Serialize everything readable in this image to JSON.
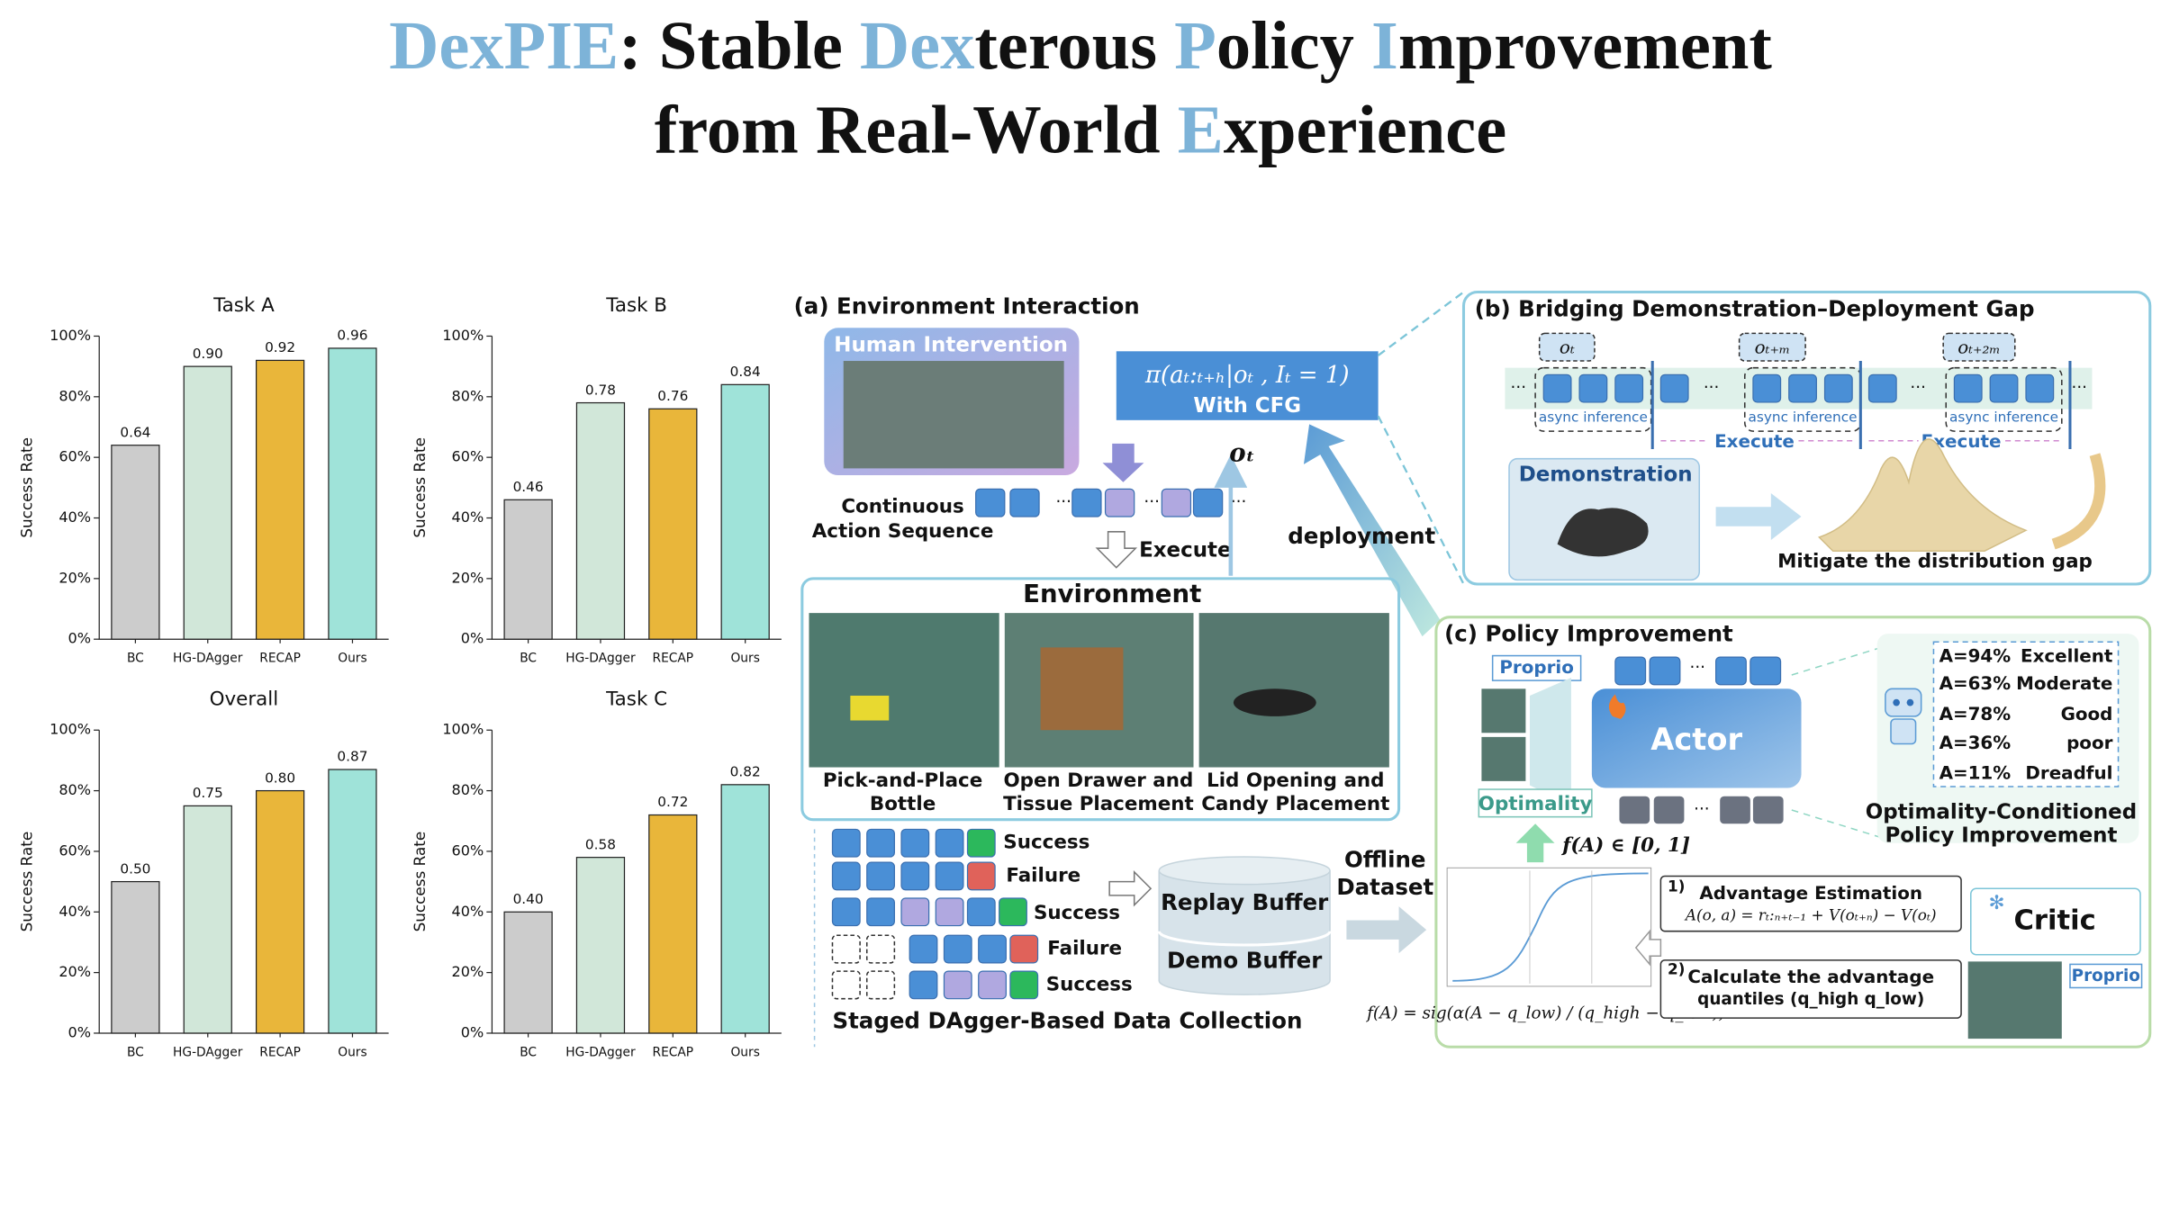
{
  "title": {
    "highlight_color": "#7db3d8",
    "lines": [
      [
        {
          "text": "DexPIE",
          "highlight": true
        },
        {
          "text": ": Stable ",
          "highlight": false
        },
        {
          "text": "Dex",
          "highlight": true
        },
        {
          "text": "terous ",
          "highlight": false
        },
        {
          "text": "P",
          "highlight": true
        },
        {
          "text": "olicy ",
          "highlight": false
        },
        {
          "text": "I",
          "highlight": true
        },
        {
          "text": "mprovement",
          "highlight": false
        }
      ],
      [
        {
          "text": "from Real-World ",
          "highlight": false
        },
        {
          "text": "E",
          "highlight": true
        },
        {
          "text": "xperience",
          "highlight": false
        }
      ]
    ]
  },
  "chart_data": [
    {
      "type": "bar",
      "title": "Task A",
      "y_label": "Success Rate",
      "categories": [
        "BC",
        "HG-DAgger",
        "RECAP",
        "Ours"
      ],
      "values": [
        0.64,
        0.9,
        0.92,
        0.96
      ],
      "value_labels": [
        "0.64",
        "0.90",
        "0.92",
        "0.96"
      ],
      "colors": [
        "#cccccc",
        "#d1e7d9",
        "#e9b63a",
        "#9fe3d9"
      ],
      "ylim": [
        0,
        1
      ],
      "yticks": [
        {
          "value": 0,
          "label": "0%"
        },
        {
          "value": 0.2,
          "label": "20%"
        },
        {
          "value": 0.4,
          "label": "40%"
        },
        {
          "value": 0.6,
          "label": "60%"
        },
        {
          "value": 0.8,
          "label": "80%"
        },
        {
          "value": 1,
          "label": "100%"
        }
      ]
    },
    {
      "type": "bar",
      "title": "Task B",
      "y_label": "Success Rate",
      "categories": [
        "BC",
        "HG-DAgger",
        "RECAP",
        "Ours"
      ],
      "values": [
        0.46,
        0.78,
        0.76,
        0.84
      ],
      "value_labels": [
        "0.46",
        "0.78",
        "0.76",
        "0.84"
      ],
      "colors": [
        "#cccccc",
        "#d1e7d9",
        "#e9b63a",
        "#9fe3d9"
      ],
      "ylim": [
        0,
        1
      ],
      "yticks": [
        {
          "value": 0,
          "label": "0%"
        },
        {
          "value": 0.2,
          "label": "20%"
        },
        {
          "value": 0.4,
          "label": "40%"
        },
        {
          "value": 0.6,
          "label": "60%"
        },
        {
          "value": 0.8,
          "label": "80%"
        },
        {
          "value": 1,
          "label": "100%"
        }
      ]
    },
    {
      "type": "bar",
      "title": "Overall",
      "y_label": "Success Rate",
      "categories": [
        "BC",
        "HG-DAgger",
        "RECAP",
        "Ours"
      ],
      "values": [
        0.5,
        0.75,
        0.8,
        0.87
      ],
      "value_labels": [
        "0.50",
        "0.75",
        "0.80",
        "0.87"
      ],
      "colors": [
        "#cccccc",
        "#d1e7d9",
        "#e9b63a",
        "#9fe3d9"
      ],
      "ylim": [
        0,
        1
      ],
      "yticks": [
        {
          "value": 0,
          "label": "0%"
        },
        {
          "value": 0.2,
          "label": "20%"
        },
        {
          "value": 0.4,
          "label": "40%"
        },
        {
          "value": 0.6,
          "label": "60%"
        },
        {
          "value": 0.8,
          "label": "80%"
        },
        {
          "value": 1,
          "label": "100%"
        }
      ]
    },
    {
      "type": "bar",
      "title": "Task C",
      "y_label": "Success Rate",
      "categories": [
        "BC",
        "HG-DAgger",
        "RECAP",
        "Ours"
      ],
      "values": [
        0.4,
        0.58,
        0.72,
        0.82
      ],
      "value_labels": [
        "0.40",
        "0.58",
        "0.72",
        "0.82"
      ],
      "colors": [
        "#cccccc",
        "#d1e7d9",
        "#e9b63a",
        "#9fe3d9"
      ],
      "ylim": [
        0,
        1
      ],
      "yticks": [
        {
          "value": 0,
          "label": "0%"
        },
        {
          "value": 0.2,
          "label": "20%"
        },
        {
          "value": 0.4,
          "label": "40%"
        },
        {
          "value": 0.6,
          "label": "60%"
        },
        {
          "value": 0.8,
          "label": "80%"
        },
        {
          "value": 1,
          "label": "100%"
        }
      ]
    }
  ],
  "panel_a": {
    "label": "(a) Environment Interaction",
    "intervention": "Human Intervention",
    "policy": "π(aₜ:ₜ₊ₕ|oₜ , Iₜ = 1)",
    "policy_note": "With CFG",
    "observation": "oₜ",
    "action_sequence": [
      "Continuous",
      "Action Sequence"
    ],
    "execute": "Execute",
    "deployment": "deployment",
    "environment": "Environment",
    "tasks": [
      [
        "Pick-and-Place",
        "Bottle"
      ],
      [
        "Open Drawer and",
        "Tissue Placement"
      ],
      [
        "Lid Opening and",
        "Candy Placement"
      ]
    ],
    "outcomes": [
      "Success",
      "Failure",
      "Success",
      "Failure",
      "Success"
    ],
    "collection": "Staged DAgger-Based Data Collection",
    "buffers": [
      "Replay Buffer",
      "Demo Buffer"
    ],
    "dataset": [
      "Offline",
      "Dataset"
    ]
  },
  "panel_b": {
    "label": "(b) Bridging Demonstration–Deployment Gap",
    "observations": [
      "oₜ",
      "oₜ₊ₘ",
      "oₜ₊₂ₘ"
    ],
    "inference": [
      "async inference",
      "async inference",
      "async inference"
    ],
    "execute": [
      "Execute",
      "Execute"
    ],
    "demonstration": "Demonstration",
    "caption": "Mitigate the distribution gap"
  },
  "panel_c": {
    "label": "(c) Policy Improvement",
    "proprio": [
      "Proprio",
      "Proprio"
    ],
    "actor": "Actor",
    "optimality": "Optimality",
    "range": "f(A) ∈ [0, 1]",
    "levels": [
      [
        "A=94%",
        "Excellent"
      ],
      [
        "A=63%",
        "Moderate"
      ],
      [
        "A=78%",
        "Good"
      ],
      [
        "A=36%",
        "poor"
      ],
      [
        "A=11%",
        "Dreadful"
      ]
    ],
    "caption": [
      "Optimality-Conditioned",
      "Policy Improvement"
    ],
    "steps": [
      {
        "number": "1)",
        "title": [
          "Advantage Estimation"
        ],
        "formula": "A(o, a) = rₜ:ₙ₊ₜ₋₁ + V(oₜ₊ₙ) − V(oₜ)"
      },
      {
        "number": "2)",
        "title": [
          "Calculate the advantage",
          "quantiles (q_high  q_low)"
        ]
      }
    ],
    "critic": "Critic",
    "mapping": "f(A) = sig(α(A − q_low) / (q_high − q_low))"
  }
}
